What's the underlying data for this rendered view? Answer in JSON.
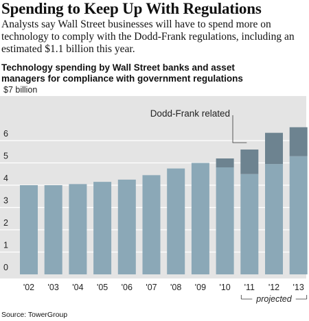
{
  "header": {
    "headline": "Spending to Keep Up With Regulations",
    "dek": "Analysts say Wall Street businesses will have to spend more on technology to comply with the Dodd-Frank regulations, including an estimated $1.1 billion this year.",
    "subtitle_line1": "Technology spending by Wall Street banks and asset",
    "subtitle_line2": "managers for compliance with government regulations"
  },
  "source": "Source: TowerGroup",
  "colors": {
    "base": "#8ba8b7",
    "dodd_frank": "#6d8390",
    "background": "#e4e4e4",
    "grid": "#ffffff"
  },
  "chart_data": {
    "type": "bar",
    "stacked": true,
    "categories": [
      "'02",
      "'03",
      "'04",
      "'05",
      "'06",
      "'07",
      "'08",
      "'09",
      "'10",
      "'11",
      "'12",
      "'13"
    ],
    "series": [
      {
        "values": [
          4.0,
          4.0,
          4.05,
          4.15,
          4.25,
          4.45,
          4.75,
          5.0,
          4.8,
          4.5,
          4.95,
          5.3
        ]
      },
      {
        "name": "Dodd-Frank related",
        "values": [
          0,
          0,
          0,
          0,
          0,
          0,
          0,
          0,
          0.4,
          1.1,
          1.4,
          1.3
        ]
      }
    ],
    "yticks": [
      "0",
      "1",
      "2",
      "3",
      "4",
      "5",
      "6",
      "$7 billion"
    ],
    "ylim": [
      0,
      7
    ],
    "grid": true,
    "annotation": "Dodd-Frank related",
    "bracket_label": "projected",
    "projected_categories": [
      "'11",
      "'12",
      "'13"
    ]
  }
}
